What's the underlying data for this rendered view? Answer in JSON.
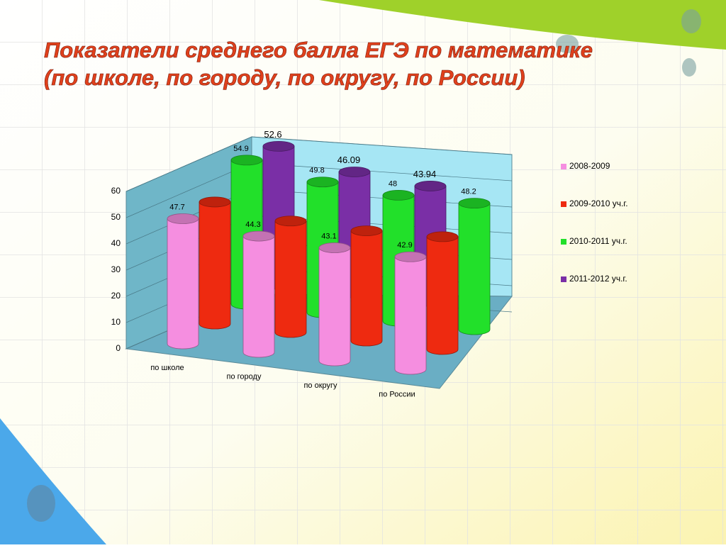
{
  "chart_data": {
    "type": "bar3d",
    "title": [
      "Показатели среднего балла ЕГЭ по математике",
      "(по школе, по городу, по округу, по России)"
    ],
    "categories": [
      "по школе",
      "по городу",
      "по округу",
      "по России"
    ],
    "series": [
      {
        "name": "2008-2009",
        "color": "#f58ee0",
        "values": [
          47.7,
          44.3,
          43.1,
          42.9
        ]
      },
      {
        "name": "2009-2010 уч.г.",
        "color": "#ee2a10",
        "values": [
          46.5,
          42.5,
          42,
          43
        ]
      },
      {
        "name": "2010-2011 уч.г.",
        "color": "#22e02a",
        "values": [
          54.9,
          49.8,
          48,
          48.2
        ]
      },
      {
        "name": "2011-2012 уч.г.",
        "color": "#7a2fa6",
        "values": [
          52.6,
          46.09,
          43.94,
          null
        ]
      }
    ],
    "ylim": [
      0,
      60
    ],
    "yticks": [
      0,
      10,
      20,
      30,
      40,
      50,
      60
    ],
    "grid": true,
    "legend": "right"
  }
}
